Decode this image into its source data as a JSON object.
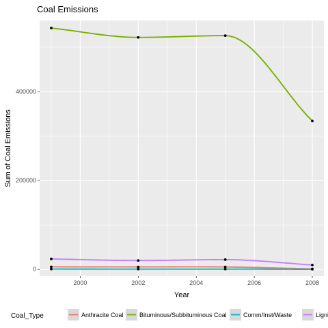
{
  "chart_data": {
    "type": "line",
    "title": "Coal Emissions",
    "xlabel": "Year",
    "ylabel": "Sum of Coal Emissions",
    "x": [
      1999,
      2002,
      2005,
      2008
    ],
    "xlim": [
      1998.6,
      2008.4
    ],
    "ylim": [
      -15000,
      560000
    ],
    "x_ticks": [
      2000,
      2002,
      2004,
      2006,
      2008
    ],
    "x_tick_labels": [
      "2000",
      "2002",
      "2004",
      "2006",
      "2008"
    ],
    "y_ticks": [
      0,
      200000,
      400000
    ],
    "y_tick_labels": [
      "0",
      "200000",
      "400000"
    ],
    "grid": true,
    "smoothed": true,
    "series": [
      {
        "name": "Anthracite Coal",
        "color": "#F8766D",
        "values": [
          5800,
          5600,
          5500,
          1200
        ]
      },
      {
        "name": "Bituminous/Subbituminous Coal",
        "color": "#7CAE00",
        "values": [
          543000,
          522000,
          526000,
          334000
        ]
      },
      {
        "name": "Comm/Inst/Waste",
        "color": "#00BFC4",
        "values": [
          800,
          700,
          700,
          300
        ]
      },
      {
        "name": "Lignite",
        "color": "#C77CFF",
        "values": [
          23500,
          20000,
          22000,
          10000
        ]
      }
    ],
    "legend": {
      "title": "Coal_Type",
      "position": "bottom",
      "labels": [
        "Anthracite Coal",
        "Bituminous/Subbituminous Coal",
        "Comm/Inst/Waste",
        "Lignite"
      ]
    }
  }
}
